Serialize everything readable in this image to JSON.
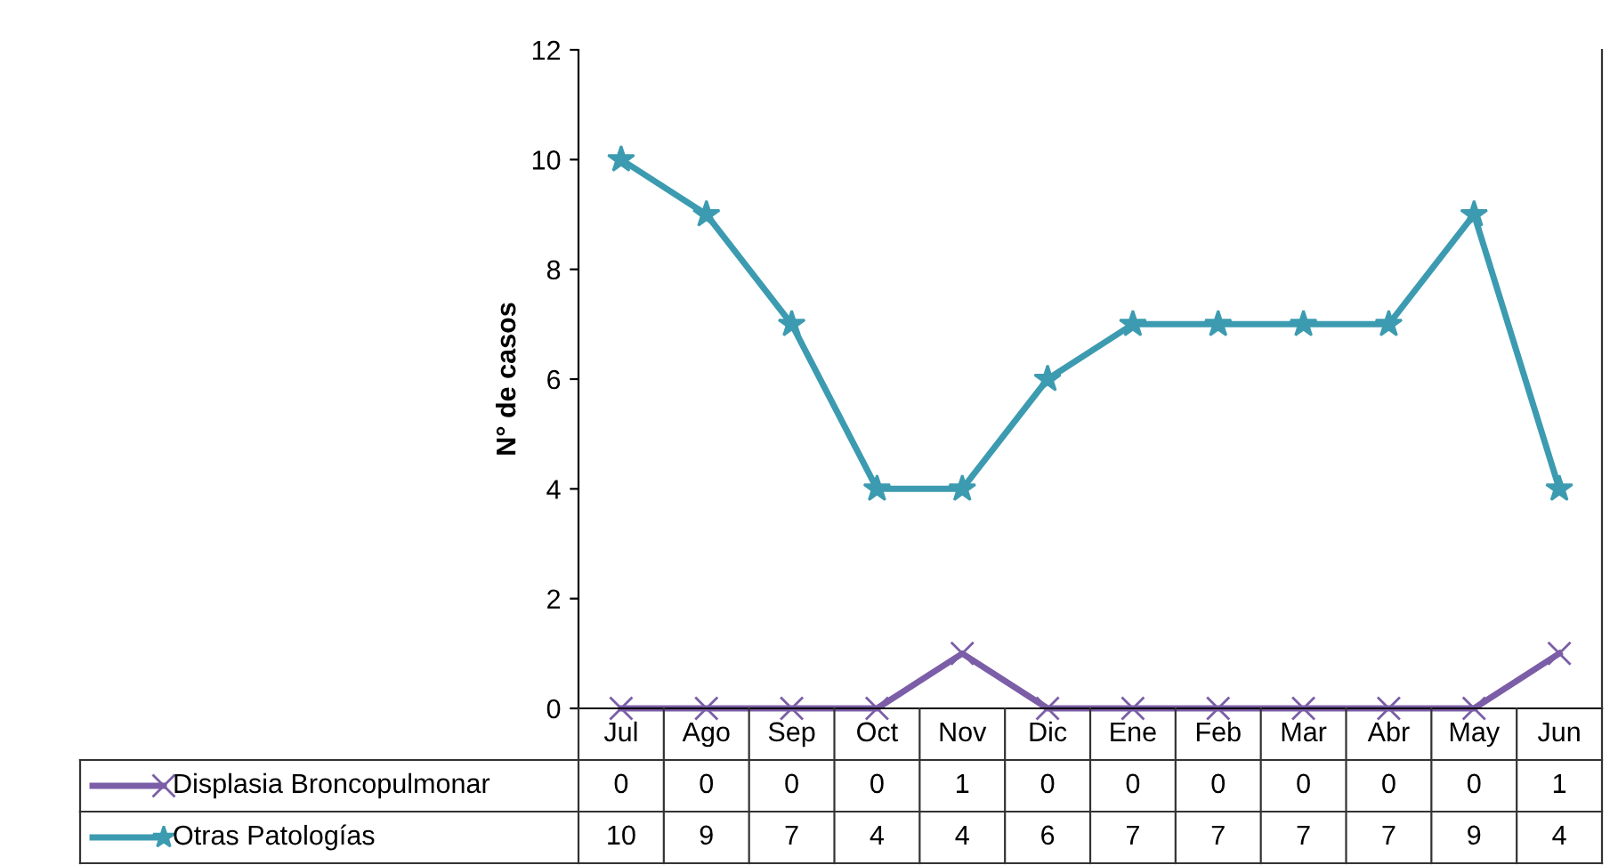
{
  "chart_data": {
    "type": "line",
    "ylabel": "N° de casos",
    "categories": [
      "Jul",
      "Ago",
      "Sep",
      "Oct",
      "Nov",
      "Dic",
      "Ene",
      "Feb",
      "Mar",
      "Abr",
      "May",
      "Jun"
    ],
    "series": [
      {
        "name": "Displasia Broncopulmonar",
        "color": "#7b5ea7",
        "marker": "cross",
        "values": [
          0,
          0,
          0,
          0,
          1,
          0,
          0,
          0,
          0,
          0,
          0,
          1
        ]
      },
      {
        "name": "Otras Patologías",
        "color": "#3c9bb0",
        "marker": "star",
        "values": [
          10,
          9,
          7,
          4,
          4,
          6,
          7,
          7,
          7,
          7,
          9,
          4
        ]
      }
    ],
    "ylim": [
      0,
      12
    ],
    "yticks": [
      0,
      2,
      4,
      6,
      8,
      10,
      12
    ],
    "grid": false,
    "legend": "bottom",
    "data_labels": true,
    "line_style": "solid"
  }
}
